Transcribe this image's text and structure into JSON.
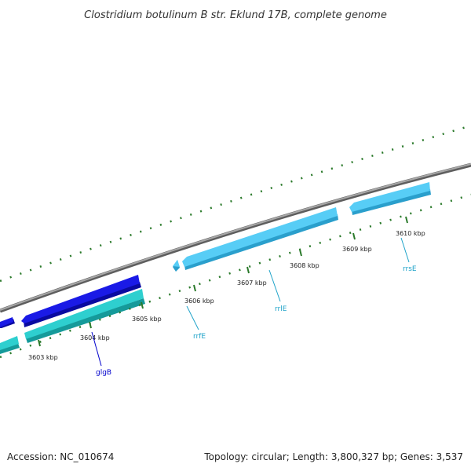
{
  "title": "Clostridium botulinum B str. Eklund 17B, complete genome",
  "footer": {
    "accession": "Accession: NC_010674",
    "summary": "Topology: circular; Length: 3,800,327 bp; Genes: 3,537"
  },
  "ticks": [
    {
      "label": "3603 kbp"
    },
    {
      "label": "3604 kbp"
    },
    {
      "label": "3605 kbp"
    },
    {
      "label": "3606 kbp"
    },
    {
      "label": "3607 kbp"
    },
    {
      "label": "3608 kbp"
    },
    {
      "label": "3609 kbp"
    },
    {
      "label": "3610 kbp"
    }
  ],
  "genes": [
    {
      "name": "glgB",
      "color": "#0000cc"
    },
    {
      "name": "rrfE",
      "color": "#1fa3c9"
    },
    {
      "name": "rrlE",
      "color": "#1fa3c9"
    },
    {
      "name": "rrsE",
      "color": "#1fa3c9"
    }
  ],
  "colors": {
    "backbone": "#8a8a8a",
    "cds": "#1a1ae6",
    "cds_shadow": "#0a0aa0",
    "trna_like": "#2ecfcf",
    "trna_shadow": "#159a9a",
    "rrna": "#57cdf6",
    "rrna_shadow": "#2a9fcc",
    "tick": "#2b7a2b"
  }
}
